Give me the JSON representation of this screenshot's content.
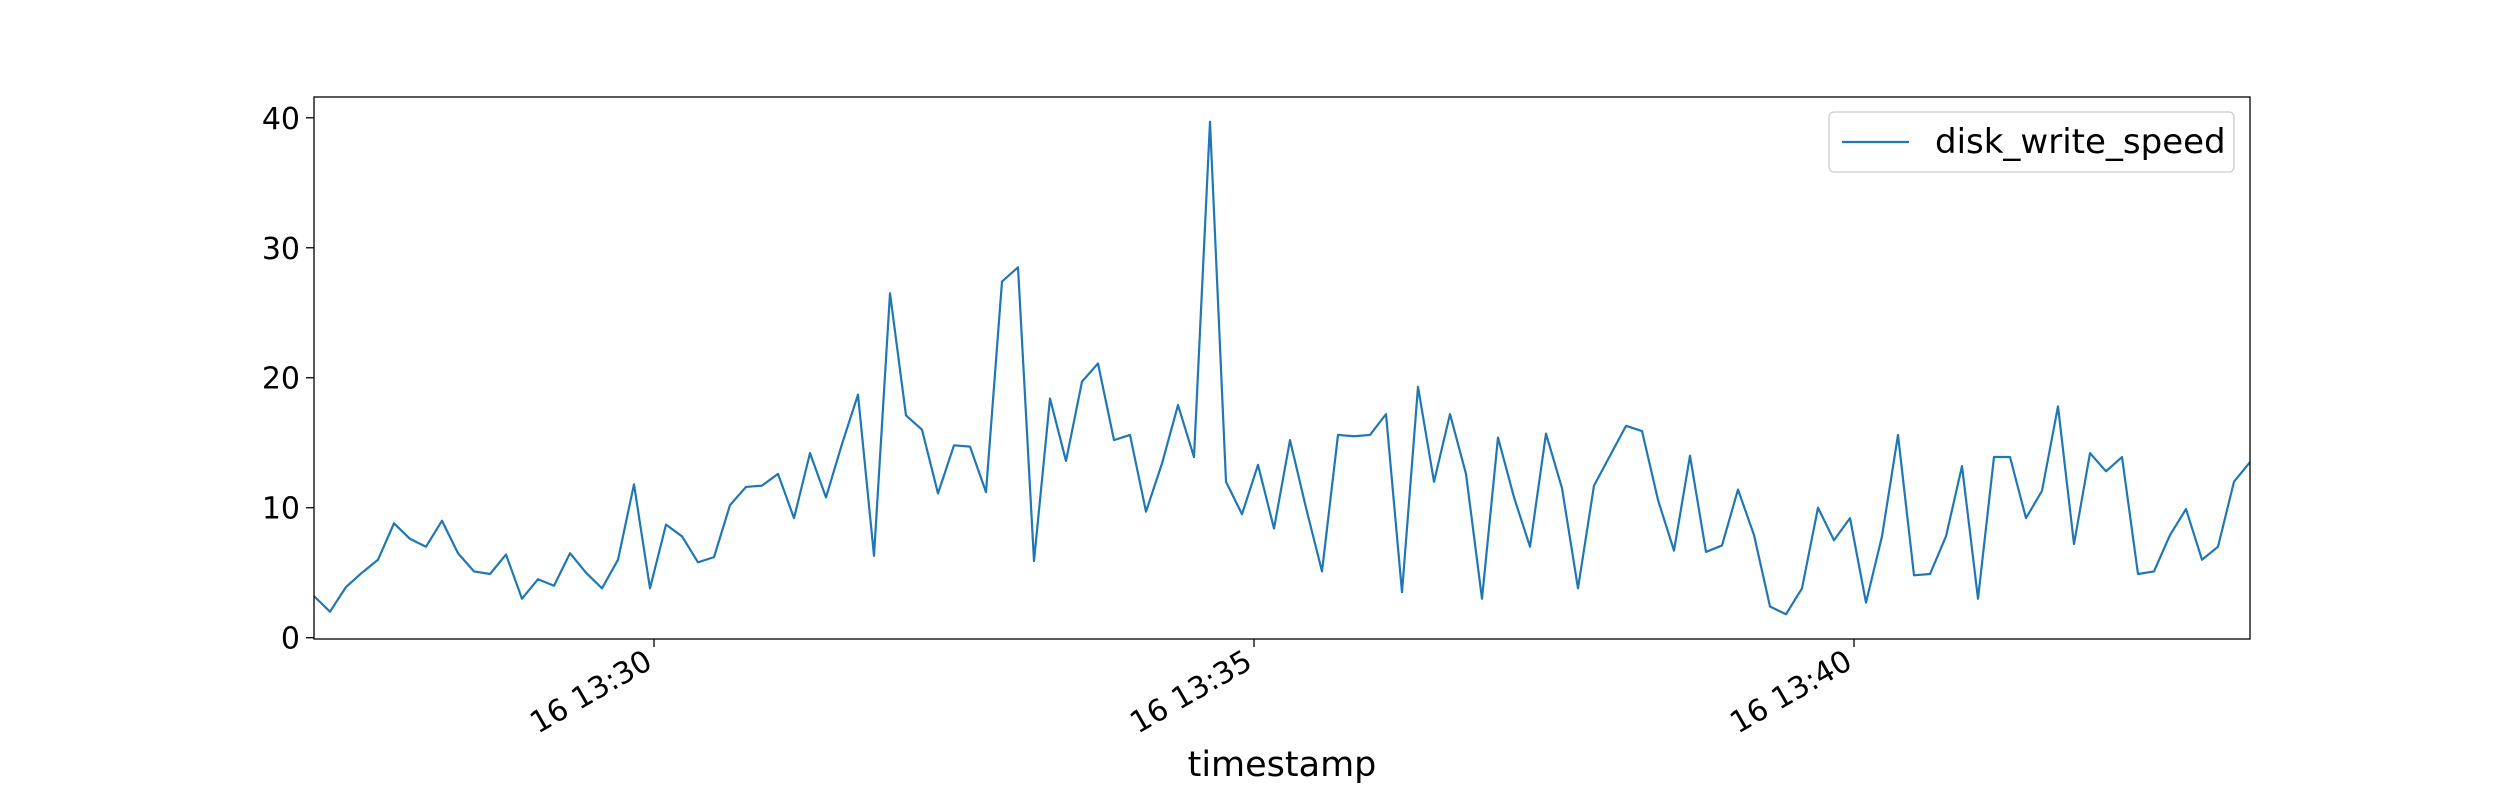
{
  "chart_data": {
    "type": "line",
    "xlabel": "timestamp",
    "x": [
      "16 13:27:10",
      "16 13:27:18",
      "16 13:27:26",
      "16 13:27:34",
      "16 13:27:42",
      "16 13:27:50",
      "16 13:27:58",
      "16 13:28:06",
      "16 13:28:14",
      "16 13:28:22",
      "16 13:28:30",
      "16 13:28:38",
      "16 13:28:46",
      "16 13:28:54",
      "16 13:29:02",
      "16 13:29:10",
      "16 13:29:18",
      "16 13:29:26",
      "16 13:29:34",
      "16 13:29:42",
      "16 13:29:50",
      "16 13:29:58",
      "16 13:30:06",
      "16 13:30:14",
      "16 13:30:22",
      "16 13:30:30",
      "16 13:30:38",
      "16 13:30:46",
      "16 13:30:54",
      "16 13:31:02",
      "16 13:31:10",
      "16 13:31:18",
      "16 13:31:26",
      "16 13:31:34",
      "16 13:31:42",
      "16 13:31:50",
      "16 13:31:58",
      "16 13:32:06",
      "16 13:32:14",
      "16 13:32:22",
      "16 13:32:30",
      "16 13:32:38",
      "16 13:32:46",
      "16 13:32:54",
      "16 13:33:02",
      "16 13:33:10",
      "16 13:33:18",
      "16 13:33:26",
      "16 13:33:34",
      "16 13:33:42",
      "16 13:33:50",
      "16 13:33:58",
      "16 13:34:06",
      "16 13:34:14",
      "16 13:34:22",
      "16 13:34:30",
      "16 13:34:38",
      "16 13:34:46",
      "16 13:34:54",
      "16 13:35:02",
      "16 13:35:10",
      "16 13:35:18",
      "16 13:35:26",
      "16 13:35:34",
      "16 13:35:42",
      "16 13:35:50",
      "16 13:35:58",
      "16 13:36:06",
      "16 13:36:14",
      "16 13:36:22",
      "16 13:36:30",
      "16 13:36:38",
      "16 13:36:46",
      "16 13:36:54",
      "16 13:37:02",
      "16 13:37:10",
      "16 13:37:18",
      "16 13:37:26",
      "16 13:37:34",
      "16 13:37:42",
      "16 13:37:50",
      "16 13:37:58",
      "16 13:38:06",
      "16 13:38:14",
      "16 13:38:22",
      "16 13:38:30",
      "16 13:38:38",
      "16 13:38:46",
      "16 13:38:54",
      "16 13:39:02",
      "16 13:39:10",
      "16 13:39:18",
      "16 13:39:26",
      "16 13:39:34",
      "16 13:39:42",
      "16 13:39:50",
      "16 13:39:58",
      "16 13:40:06",
      "16 13:40:14",
      "16 13:40:22",
      "16 13:40:30",
      "16 13:40:38",
      "16 13:40:46",
      "16 13:40:54",
      "16 13:41:02",
      "16 13:41:10",
      "16 13:41:18",
      "16 13:41:26",
      "16 13:41:34",
      "16 13:41:42",
      "16 13:41:50",
      "16 13:41:58",
      "16 13:42:06",
      "16 13:42:14",
      "16 13:42:22",
      "16 13:42:30",
      "16 13:42:38",
      "16 13:42:46",
      "16 13:42:54",
      "16 13:43:02",
      "16 13:43:10",
      "16 13:43:18"
    ],
    "series": [
      {
        "name": "disk_write_speed",
        "color": "#1f77b4",
        "values": [
          3.2,
          2.0,
          3.9,
          5.0,
          6.0,
          8.8,
          7.6,
          7.0,
          9.0,
          6.5,
          5.1,
          4.9,
          6.4,
          3.0,
          4.5,
          4.0,
          6.5,
          5.0,
          3.8,
          6.0,
          11.8,
          3.8,
          8.7,
          7.8,
          5.8,
          6.2,
          10.2,
          11.6,
          11.7,
          12.6,
          9.2,
          14.2,
          10.8,
          14.9,
          18.7,
          6.3,
          26.5,
          17.1,
          16.0,
          11.1,
          14.8,
          14.7,
          11.2,
          27.4,
          28.5,
          5.9,
          18.4,
          13.6,
          19.7,
          21.1,
          15.2,
          15.6,
          9.7,
          13.4,
          17.9,
          13.9,
          39.7,
          12.0,
          9.5,
          13.3,
          8.4,
          15.2,
          10.0,
          5.1,
          15.6,
          15.5,
          15.6,
          17.2,
          3.5,
          19.3,
          12.0,
          17.2,
          12.6,
          3.0,
          15.4,
          10.8,
          7.0,
          15.7,
          11.5,
          3.8,
          11.7,
          14.0,
          16.3,
          15.9,
          10.6,
          6.7,
          14.0,
          6.6,
          7.1,
          11.4,
          7.9,
          2.4,
          1.8,
          3.8,
          10.0,
          7.5,
          9.2,
          2.7,
          7.8,
          15.6,
          4.8,
          4.9,
          7.8,
          13.2,
          3.0,
          13.9,
          13.9,
          9.2,
          11.3,
          17.8,
          7.2,
          14.2,
          12.8,
          13.9,
          4.9,
          5.1,
          7.9,
          9.9,
          6.0,
          7.0,
          12.0,
          13.5
        ]
      }
    ],
    "xlim": [
      "16 13:27:10",
      "16 13:43:18"
    ],
    "xticks": [
      "16 13:30",
      "16 13:35",
      "16 13:40"
    ],
    "ylim": [
      -0.1,
      41.6
    ],
    "yticks": [
      0,
      10,
      20,
      30,
      40
    ],
    "legend": "upper right"
  }
}
